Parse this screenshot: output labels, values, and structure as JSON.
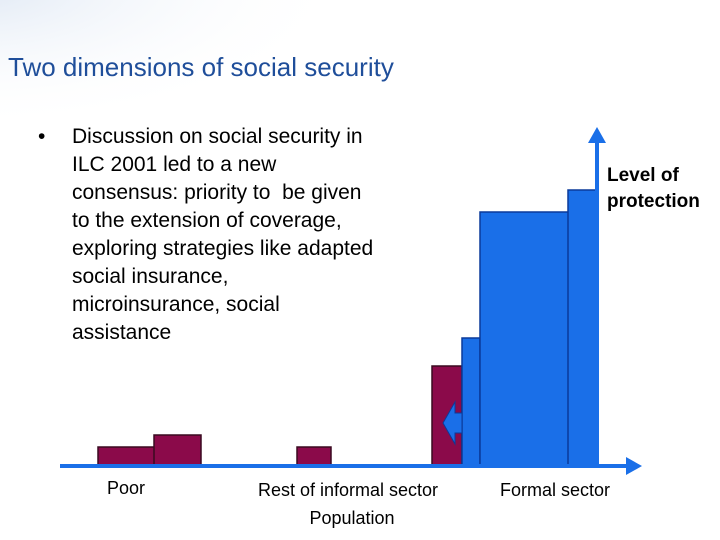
{
  "header": {
    "title": "Two dimensions of social security"
  },
  "bullet": {
    "lines": [
      "Discussion on social security in",
      "ILC 2001 led to a new",
      "consensus: priority to  be given",
      "to the extension of coverage,",
      "exploring strategies like adapted",
      "social insurance,",
      "microinsurance, social",
      "assistance"
    ]
  },
  "diagram": {
    "y_axis_label": {
      "lines": [
        "Level of",
        "protection"
      ]
    },
    "groups": [
      "Poor",
      "Rest of informal sector",
      "Formal sector"
    ],
    "x_axis_label": "Population"
  }
}
